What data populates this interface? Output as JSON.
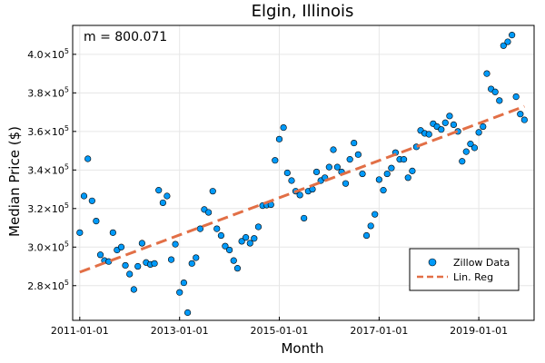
{
  "chart_data": {
    "type": "scatter",
    "title": "Elgin, Illinois",
    "xlabel": "Month",
    "ylabel": "Median Price ($)",
    "annotation": "m = 800.071",
    "grid": true,
    "legend_position": "bottom-right",
    "x_ticks": [
      {
        "label": "2011-01-01",
        "value": "2011-01-01"
      },
      {
        "label": "2013-01-01",
        "value": "2013-01-01"
      },
      {
        "label": "2015-01-01",
        "value": "2015-01-01"
      },
      {
        "label": "2017-01-01",
        "value": "2017-01-01"
      },
      {
        "label": "2019-01-01",
        "value": "2019-01-01"
      }
    ],
    "y_ticks": [
      {
        "mantissa": "2.8",
        "exp": "5",
        "value": 280000
      },
      {
        "mantissa": "3.0",
        "exp": "5",
        "value": 300000
      },
      {
        "mantissa": "3.2",
        "exp": "5",
        "value": 320000
      },
      {
        "mantissa": "3.4",
        "exp": "5",
        "value": 340000
      },
      {
        "mantissa": "3.6",
        "exp": "5",
        "value": 360000
      },
      {
        "mantissa": "3.8",
        "exp": "5",
        "value": 380000
      },
      {
        "mantissa": "4.0",
        "exp": "5",
        "value": 400000
      }
    ],
    "xlim": [
      "2010-11-10",
      "2020-02-10"
    ],
    "ylim": [
      262000,
      415000
    ],
    "series": [
      {
        "name": "Zillow Data",
        "kind": "scatter",
        "color": "#009AF9",
        "x": [
          "2011-01-01",
          "2011-02-01",
          "2011-03-01",
          "2011-04-01",
          "2011-05-01",
          "2011-06-01",
          "2011-07-01",
          "2011-08-01",
          "2011-09-01",
          "2011-10-01",
          "2011-11-01",
          "2011-12-01",
          "2012-01-01",
          "2012-02-01",
          "2012-03-01",
          "2012-04-01",
          "2012-05-01",
          "2012-06-01",
          "2012-07-01",
          "2012-08-01",
          "2012-09-01",
          "2012-10-01",
          "2012-11-01",
          "2012-12-01",
          "2013-01-01",
          "2013-02-01",
          "2013-03-01",
          "2013-04-01",
          "2013-05-01",
          "2013-06-01",
          "2013-07-01",
          "2013-08-01",
          "2013-09-01",
          "2013-10-01",
          "2013-11-01",
          "2013-12-01",
          "2014-01-01",
          "2014-02-01",
          "2014-03-01",
          "2014-04-01",
          "2014-05-01",
          "2014-06-01",
          "2014-07-01",
          "2014-08-01",
          "2014-09-01",
          "2014-10-01",
          "2014-11-01",
          "2014-12-01",
          "2015-01-01",
          "2015-02-01",
          "2015-03-01",
          "2015-04-01",
          "2015-05-01",
          "2015-06-01",
          "2015-07-01",
          "2015-08-01",
          "2015-09-01",
          "2015-10-01",
          "2015-11-01",
          "2015-12-01",
          "2016-01-01",
          "2016-02-01",
          "2016-03-01",
          "2016-04-01",
          "2016-05-01",
          "2016-06-01",
          "2016-07-01",
          "2016-08-01",
          "2016-09-01",
          "2016-10-01",
          "2016-11-01",
          "2016-12-01",
          "2017-01-01",
          "2017-02-01",
          "2017-03-01",
          "2017-04-01",
          "2017-05-01",
          "2017-06-01",
          "2017-07-01",
          "2017-08-01",
          "2017-09-01",
          "2017-10-01",
          "2017-11-01",
          "2017-12-01",
          "2018-01-01",
          "2018-02-01",
          "2018-03-01",
          "2018-04-01",
          "2018-05-01",
          "2018-06-01",
          "2018-07-01",
          "2018-08-01",
          "2018-09-01",
          "2018-10-01",
          "2018-11-01",
          "2018-12-01",
          "2019-01-01",
          "2019-02-01",
          "2019-03-01",
          "2019-04-01",
          "2019-05-01",
          "2019-06-01",
          "2019-07-01",
          "2019-08-01",
          "2019-09-01",
          "2019-10-01",
          "2019-11-01",
          "2019-12-01"
        ],
        "y": [
          307500,
          326500,
          345800,
          324000,
          313500,
          296000,
          293000,
          292500,
          307500,
          298500,
          300000,
          290500,
          286000,
          278000,
          290000,
          302000,
          292000,
          291000,
          291500,
          329500,
          323000,
          326500,
          293500,
          301500,
          276500,
          281500,
          266000,
          291500,
          294500,
          309500,
          319500,
          318000,
          329000,
          309500,
          306000,
          300500,
          298500,
          293000,
          289000,
          303000,
          305000,
          302000,
          304500,
          310500,
          321500,
          321800,
          322000,
          345000,
          356000,
          362000,
          338500,
          334500,
          329000,
          327000,
          315000,
          329000,
          330000,
          339000,
          334500,
          336000,
          341500,
          350500,
          341500,
          339000,
          333000,
          345500,
          354000,
          348000,
          338000,
          306000,
          311000,
          317000,
          335000,
          329500,
          338000,
          341000,
          349000,
          345500,
          345500,
          336000,
          339500,
          352000,
          360500,
          359000,
          358500,
          364000,
          362500,
          361000,
          364500,
          368000,
          363500,
          360000,
          344500,
          349500,
          353500,
          351500,
          359500,
          362500,
          390000,
          382000,
          380500,
          376000,
          404500,
          406500,
          410000,
          378000,
          369000,
          366000
        ]
      },
      {
        "name": "Lin. Reg",
        "kind": "line",
        "color": "#E26F46",
        "dash": true,
        "x": [
          "2011-01-01",
          "2019-12-01"
        ],
        "y": [
          287000,
          373000
        ]
      }
    ]
  }
}
